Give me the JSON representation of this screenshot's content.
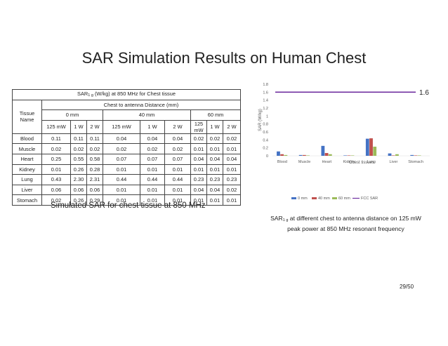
{
  "slide": {
    "title": "SAR Simulation Results on Human Chest",
    "page_number": "29/50"
  },
  "table": {
    "title_prefix": "SAR",
    "title_sub": "1 g",
    "title_suffix": " (W/kg) at 850 MHz for Chest tissue",
    "distance_header": "Chest to antenna Distance (mm)",
    "row_header": "Tissue Name",
    "distances": [
      "0 mm",
      "40 mm",
      "60 mm"
    ],
    "powers": [
      "125 mW",
      "1 W",
      "2 W",
      "125 mW",
      "1 W",
      "2 W",
      "125 mW",
      "1 W",
      "2 W"
    ],
    "rows": [
      {
        "name": "Blood",
        "values": [
          "0.11",
          "0.11",
          "0.11",
          "0.04",
          "0.04",
          "0.04",
          "0.02",
          "0.02",
          "0.02"
        ]
      },
      {
        "name": "Muscle",
        "values": [
          "0.02",
          "0.02",
          "0.02",
          "0.02",
          "0.02",
          "0.02",
          "0.01",
          "0.01",
          "0.01"
        ]
      },
      {
        "name": "Heart",
        "values": [
          "0.25",
          "0.55",
          "0.58",
          "0.07",
          "0.07",
          "0.07",
          "0.04",
          "0.04",
          "0.04"
        ]
      },
      {
        "name": "Kidney",
        "values": [
          "0.01",
          "0.26",
          "0.28",
          "0.01",
          "0.01",
          "0.01",
          "0.01",
          "0.01",
          "0.01"
        ]
      },
      {
        "name": "Lung",
        "values": [
          "0.43",
          "2.30",
          "2.31",
          "0.44",
          "0.44",
          "0.44",
          "0.23",
          "0.23",
          "0.23"
        ]
      },
      {
        "name": "Liver",
        "values": [
          "0.06",
          "0.06",
          "0.06",
          "0.01",
          "0.01",
          "0.01",
          "0.04",
          "0.04",
          "0.02"
        ]
      },
      {
        "name": "Stomach",
        "values": [
          "0.02",
          "0.26",
          "0.29",
          "0.01",
          "0.01",
          "0.01",
          "0.01",
          "0.01",
          "0.01"
        ]
      }
    ],
    "caption": "Simulated SAR for chest tissue at 850 MHz"
  },
  "chart_data": {
    "type": "bar",
    "title": "",
    "xlabel": "Chest tissues",
    "ylabel": "SAR (W/kg)",
    "ylim": [
      0,
      1.8
    ],
    "yticks": [
      "0",
      "0.2",
      "0.4",
      "0.6",
      "0.8",
      "1",
      "1.2",
      "1.4",
      "1.6",
      "1.8"
    ],
    "categories": [
      "Blood",
      "Muscle",
      "Heart",
      "Kidney",
      "Lung",
      "Liver",
      "Stomach"
    ],
    "series": [
      {
        "name": "0 mm",
        "color": "#4472c4",
        "values": [
          0.11,
          0.02,
          0.25,
          0.01,
          0.43,
          0.06,
          0.02
        ]
      },
      {
        "name": "40 mm",
        "color": "#c0504d",
        "values": [
          0.04,
          0.02,
          0.07,
          0.01,
          0.44,
          0.01,
          0.01
        ]
      },
      {
        "name": "60 mm",
        "color": "#9bbb59",
        "values": [
          0.02,
          0.01,
          0.04,
          0.01,
          0.23,
          0.04,
          0.01
        ]
      }
    ],
    "limit_line": {
      "name": "FCC SAR",
      "value": 1.6,
      "label": "1.6",
      "color": "#7030a0"
    },
    "grid": false,
    "legend": "bottom"
  },
  "chart_caption": {
    "prefix": "SAR",
    "sub": "1 g",
    "text": " at different chest to antenna distance on 125 mW peak power at 850 MHz resonant frequency"
  }
}
